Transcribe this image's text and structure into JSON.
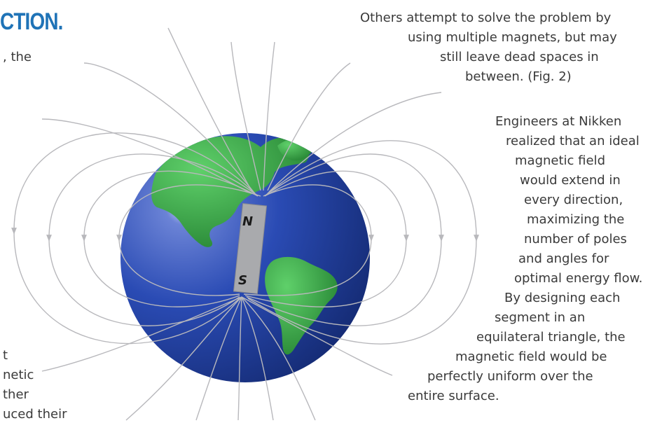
{
  "heading": "CTION.",
  "left_text": {
    "top": [
      ", the"
    ],
    "bottom": [
      "t",
      "netic",
      "ther",
      "uced their"
    ]
  },
  "right_text": {
    "paragraph1": [
      "Others attempt to solve the problem by",
      "using multiple magnets, but may",
      "still leave dead spaces in",
      "between. (Fig. 2)"
    ],
    "paragraph2": [
      "Engineers at Nikken",
      "realized that an ideal",
      "magnetic field",
      "would extend in",
      "every direction,",
      "maximizing the",
      "number of poles",
      "and angles for",
      "optimal energy flow.",
      "By designing each",
      "segment in an",
      "equilateral triangle, the",
      "magnetic field would be",
      "perfectly uniform over the",
      "entire surface."
    ]
  },
  "diagram": {
    "north_label": "N",
    "south_label": "S",
    "colors": {
      "ocean": "#1f3f9e",
      "land": "#2f9a3c",
      "field_lines": "#b8b8bc",
      "magnet": "#a9aaad"
    }
  }
}
